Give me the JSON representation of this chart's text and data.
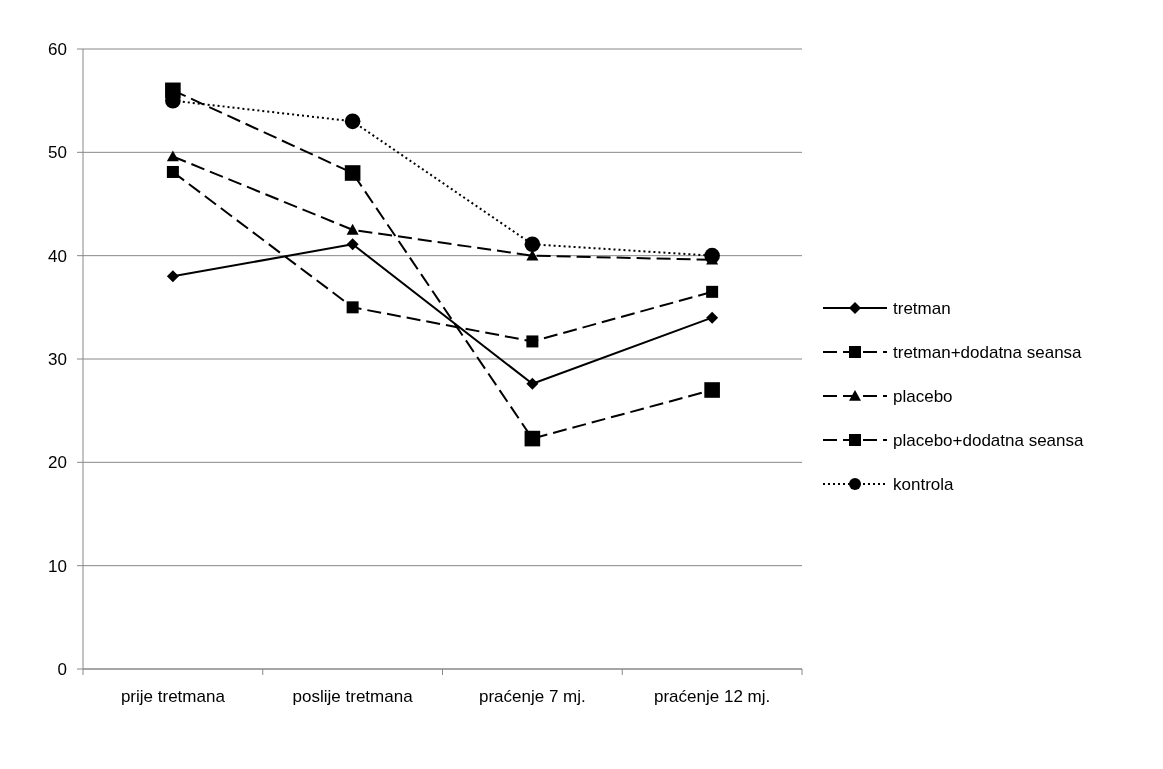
{
  "chart_data": {
    "type": "line",
    "categories": [
      "prije tretmana",
      "poslije tretmana",
      "praćenje 7 mj.",
      "praćenje 12 mj."
    ],
    "series": [
      {
        "name": "tretman",
        "color": "#000000",
        "values": [
          38,
          41.1,
          27.6,
          34
        ],
        "marker": "diamond",
        "line_style": "solid"
      },
      {
        "name": "tretman+dodatna seansa",
        "color": "#000000",
        "values": [
          48.1,
          35,
          31.7,
          36.5
        ],
        "marker": "square",
        "line_style": "dashed"
      },
      {
        "name": "placebo",
        "color": "#000000",
        "values": [
          49.6,
          42.5,
          40,
          39.6
        ],
        "marker": "triangle",
        "line_style": "dashed"
      },
      {
        "name": "placebo+dodatna seansa",
        "color": "#000000",
        "values": [
          56,
          48,
          22.3,
          27
        ],
        "marker": "square",
        "line_style": "dashed"
      },
      {
        "name": "kontrola",
        "color": "#000000",
        "values": [
          55,
          53,
          41.1,
          40
        ],
        "marker": "circle",
        "line_style": "dotted"
      }
    ],
    "ylim": [
      0,
      60
    ],
    "yticks": [
      0,
      10,
      20,
      30,
      40,
      50,
      60
    ],
    "grid": "y",
    "legend": "right"
  }
}
